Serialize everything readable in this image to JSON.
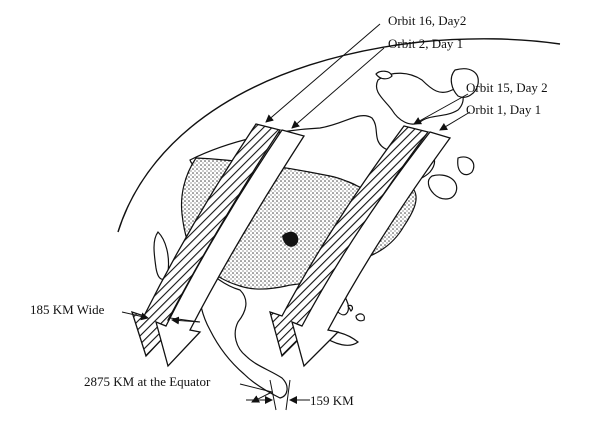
{
  "labels": {
    "orbit16": "Orbit 16, Day2",
    "orbit2": "Orbit 2, Day 1",
    "orbit15": "Orbit 15, Day 2",
    "orbit1": "Orbit 1, Day 1",
    "swath_width": "185 KM Wide",
    "equator_spacing": "2875 KM at the Equator",
    "adjacent_spacing": "159 KM"
  }
}
